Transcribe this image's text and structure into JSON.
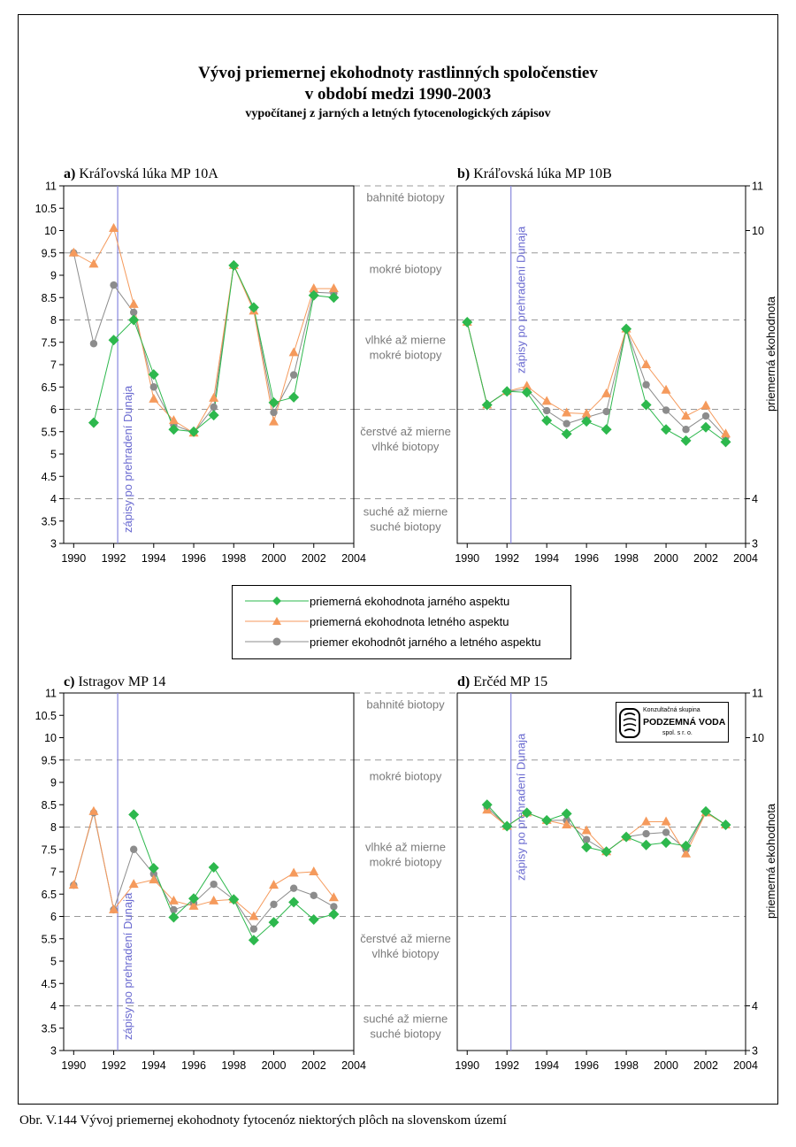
{
  "title": {
    "line1": "Vývoj priemernej ekohodnoty rastlinných spoločenstiev",
    "line2": "v období medzi 1990-2003",
    "line3": "vypočítanej z jarných a letných fytocenologických zápisov"
  },
  "caption": "Obr. V.144 Vývoj priemernej ekohodnoty fytocenóz niektorých plôch na slovenskom území",
  "legend": {
    "spring": "priemerná ekohodnota jarného aspektu",
    "summer": "priemerná ekohodnota letného aspektu",
    "mean": "priemer ekohodnôt jarného a letného aspektu"
  },
  "colors": {
    "spring": "#2db84d",
    "summer": "#f59a5c",
    "mean": "#8c8c8c",
    "dam_line": "#8888dd",
    "grid": "#999999"
  },
  "logo": {
    "sub": "Konzultačná skupina",
    "main": "PODZEMNÁ VODA",
    "foot": "spol. s r. o."
  },
  "habitat_zones": [
    {
      "lines": [
        "bahnité biotopy"
      ],
      "y": 10.75
    },
    {
      "lines": [
        "mokré biotopy"
      ],
      "y": 9.15
    },
    {
      "lines": [
        "vlhké až mierne",
        "mokré biotopy"
      ],
      "y": 7.4
    },
    {
      "lines": [
        "čerstvé až mierne",
        "vlhké biotopy"
      ],
      "y": 5.35
    },
    {
      "lines": [
        "suché až mierne",
        "suché biotopy"
      ],
      "y": 3.55
    }
  ],
  "chart_data": [
    {
      "type": "line",
      "panel_label": "a)",
      "title": "Kráľovská lúka MP 10A",
      "xlim": [
        1989.5,
        2004
      ],
      "ylim": [
        3,
        11
      ],
      "xticks": [
        1990,
        1992,
        1994,
        1996,
        1998,
        2000,
        2002,
        2004
      ],
      "yticks": [
        3,
        3.5,
        4,
        4.5,
        5,
        5.5,
        6,
        6.5,
        7,
        7.5,
        8,
        8.5,
        9,
        9.5,
        10,
        10.5,
        11
      ],
      "ylabel": "",
      "dam_year": 1992.2,
      "dam_label": "zápisy po prehradení Dunaja",
      "hlines": [
        11,
        9.5,
        8,
        6,
        4
      ],
      "series": [
        {
          "name": "priemerná ekohodnota jarného aspektu",
          "x": [
            1991,
            1992,
            1993,
            1994,
            1995,
            1996,
            1997,
            1998,
            1999,
            2000,
            2001,
            2002,
            2003
          ],
          "y": [
            5.7,
            7.55,
            8.0,
            6.78,
            5.55,
            5.5,
            5.87,
            9.22,
            8.28,
            6.15,
            6.27,
            8.55,
            8.5
          ]
        },
        {
          "name": "priemerná ekohodnota letného aspektu",
          "x": [
            1990,
            1991,
            1992,
            1993,
            1994,
            1995,
            1996,
            1997,
            1998,
            1999,
            2000,
            2001,
            2002,
            2003
          ],
          "y": [
            9.5,
            9.25,
            10.05,
            8.35,
            6.23,
            5.75,
            5.47,
            6.25,
            9.22,
            8.2,
            5.72,
            7.27,
            8.7,
            8.7
          ]
        },
        {
          "name": "priemer ekohodnôt jarného a letného aspektu",
          "x": [
            1990,
            1991,
            1992,
            1993,
            1994,
            1995,
            1996,
            1997,
            1998,
            1999,
            2000,
            2001,
            2002,
            2003
          ],
          "y": [
            9.5,
            7.47,
            8.78,
            8.17,
            6.5,
            5.65,
            5.48,
            6.05,
            9.22,
            8.25,
            5.93,
            6.77,
            8.62,
            8.6
          ]
        }
      ]
    },
    {
      "type": "line",
      "panel_label": "b)",
      "title": "Kráľovská lúka MP 10B",
      "xlim": [
        1989.5,
        2004
      ],
      "ylim": [
        3,
        11
      ],
      "xticks": [
        1990,
        1992,
        1994,
        1996,
        1998,
        2000,
        2002,
        2004
      ],
      "yticks": [
        3,
        4,
        10,
        11
      ],
      "ylabel": "priemerná ekohodnota",
      "dam_year": 1992.2,
      "dam_label": "zápisy po prehradení Dunaja",
      "hlines": [
        11,
        9.5,
        8,
        6,
        4
      ],
      "series": [
        {
          "name": "priemerná ekohodnota jarného aspektu",
          "x": [
            1990,
            1991,
            1992,
            1993,
            1994,
            1995,
            1996,
            1997,
            1998,
            1999,
            2000,
            2001,
            2002,
            2003
          ],
          "y": [
            7.95,
            6.1,
            6.4,
            6.38,
            5.75,
            5.45,
            5.73,
            5.55,
            7.8,
            6.1,
            5.55,
            5.3,
            5.6,
            5.27
          ]
        },
        {
          "name": "priemerná ekohodnota letného aspektu",
          "x": [
            1990,
            1991,
            1992,
            1993,
            1994,
            1995,
            1996,
            1997,
            1998,
            1999,
            2000,
            2001,
            2002,
            2003
          ],
          "y": [
            7.95,
            6.1,
            6.4,
            6.52,
            6.18,
            5.92,
            5.9,
            6.35,
            7.8,
            7.0,
            6.43,
            5.85,
            6.08,
            5.45
          ]
        },
        {
          "name": "priemer ekohodnôt jarného a letného aspektu",
          "x": [
            1990,
            1991,
            1992,
            1993,
            1994,
            1995,
            1996,
            1997,
            1998,
            1999,
            2000,
            2001,
            2002,
            2003
          ],
          "y": [
            7.95,
            6.1,
            6.4,
            6.45,
            5.97,
            5.68,
            5.82,
            5.95,
            7.8,
            6.55,
            5.98,
            5.55,
            5.85,
            5.38
          ]
        }
      ]
    },
    {
      "type": "line",
      "panel_label": "c)",
      "title": "Istragov MP 14",
      "xlim": [
        1989.5,
        2004
      ],
      "ylim": [
        3,
        11
      ],
      "xticks": [
        1990,
        1992,
        1994,
        1996,
        1998,
        2000,
        2002,
        2004
      ],
      "yticks": [
        3,
        3.5,
        4,
        4.5,
        5,
        5.5,
        6,
        6.5,
        7,
        7.5,
        8,
        8.5,
        9,
        9.5,
        10,
        10.5,
        11
      ],
      "ylabel": "",
      "dam_year": 1992.2,
      "dam_label": "zápisy po prehradení Dunaja",
      "hlines": [
        11,
        9.5,
        8,
        6,
        4
      ],
      "series": [
        {
          "name": "priemerná ekohodnota jarného aspektu",
          "x": [
            1993,
            1994,
            1995,
            1996,
            1997,
            1998,
            1999,
            2000,
            2001,
            2002,
            2003
          ],
          "y": [
            8.28,
            7.08,
            5.98,
            6.4,
            7.1,
            6.38,
            5.47,
            5.87,
            6.32,
            5.93,
            6.05
          ]
        },
        {
          "name": "priemerná ekohodnota letného aspektu",
          "x": [
            1990,
            1991,
            1992,
            1993,
            1994,
            1995,
            1996,
            1997,
            1998,
            1999,
            2000,
            2001,
            2002,
            2003
          ],
          "y": [
            6.7,
            8.35,
            6.15,
            6.72,
            6.82,
            6.35,
            6.23,
            6.35,
            6.38,
            6.0,
            6.7,
            6.97,
            7.0,
            6.42
          ]
        },
        {
          "name": "priemer ekohodnôt jarného a letného aspektu",
          "x": [
            1990,
            1991,
            1992,
            1993,
            1994,
            1995,
            1996,
            1997,
            1998,
            1999,
            2000,
            2001,
            2002,
            2003
          ],
          "y": [
            6.7,
            8.32,
            6.15,
            7.5,
            6.95,
            6.15,
            6.3,
            6.72,
            6.38,
            5.72,
            6.27,
            6.63,
            6.47,
            6.22
          ]
        }
      ]
    },
    {
      "type": "line",
      "panel_label": "d)",
      "title": "Erčéd MP 15",
      "xlim": [
        1989.5,
        2004
      ],
      "ylim": [
        3,
        11
      ],
      "xticks": [
        1990,
        1992,
        1994,
        1996,
        1998,
        2000,
        2002,
        2004
      ],
      "yticks": [
        3,
        4,
        10,
        11
      ],
      "ylabel": "priemerná ekohodnota",
      "dam_year": 1992.2,
      "dam_label": "zápisy po prehradení Dunaja",
      "hlines": [
        11,
        9.5,
        8,
        6,
        4
      ],
      "series": [
        {
          "name": "priemerná ekohodnota jarného aspektu",
          "x": [
            1991,
            1992,
            1993,
            1994,
            1995,
            1996,
            1997,
            1998,
            1999,
            2000,
            2001,
            2002,
            2003
          ],
          "y": [
            8.5,
            8.02,
            8.32,
            8.15,
            8.3,
            7.55,
            7.45,
            7.78,
            7.6,
            7.65,
            7.58,
            8.35,
            8.05
          ]
        },
        {
          "name": "priemerná ekohodnota letného aspektu",
          "x": [
            1991,
            1992,
            1993,
            1994,
            1995,
            1996,
            1997,
            1998,
            1999,
            2000,
            2001,
            2002,
            2003
          ],
          "y": [
            8.38,
            8.02,
            8.32,
            8.15,
            8.05,
            7.92,
            7.45,
            7.78,
            8.12,
            8.12,
            7.4,
            8.32,
            8.05
          ]
        },
        {
          "name": "priemer ekohodnôt jarného a letného aspektu",
          "x": [
            1991,
            1992,
            1993,
            1994,
            1995,
            1996,
            1997,
            1998,
            1999,
            2000,
            2001,
            2002,
            2003
          ],
          "y": [
            8.44,
            8.02,
            8.32,
            8.15,
            8.15,
            7.72,
            7.45,
            7.78,
            7.85,
            7.88,
            7.5,
            8.34,
            8.05
          ]
        }
      ]
    }
  ]
}
